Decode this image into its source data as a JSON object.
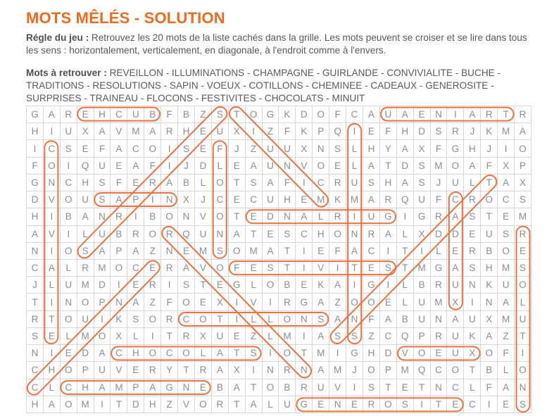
{
  "header": {
    "title": "MOTS MÊLÉS - SOLUTION",
    "rule_label": "Régle du jeu :",
    "rule_text": " Retrouvez les 20 mots de la liste cachés dans la grille. Les mots peuvent se croiser et se lire dans tous les sens : horizontalement, verticalement, en diagonale, à l'endroit comme à l'envers.",
    "words_label": "Mots à retrouver : ",
    "words": [
      "REVEILLON",
      "ILLUMINATIONS",
      "CHAMPAGNE",
      "GUIRLANDE",
      "CONVIVIALITE",
      "BUCHE",
      "TRADITIONS",
      "RESOLUTIONS",
      "SAPIN",
      "VOEUX",
      "COTILLONS",
      "CHEMINEE",
      "CADEAUX",
      "GENEROSITE",
      "SURPRISES",
      "TRAINEAU",
      "FLOCONS",
      "FESTIVITES",
      "CHOCOLATS",
      "MINUIT"
    ],
    "words_separator": " - "
  },
  "colors": {
    "accent": "#ED6B1E",
    "body_text": "#58595b",
    "grid_letter": "#8c8d8f",
    "grid_line": "#d6d6d6",
    "oval_stroke": "#ED7140"
  },
  "grid": {
    "rows": 18,
    "cols": 30,
    "letters": [
      "GAREHCUBFBZSTOGKDOFCAUAENIARTR",
      "HIUXAVMARHEUXIZFKPQIEFHDSRJKMA",
      "ICSEFACOISEFJZUUXNSLHYAXFGHJIO",
      "FOIQUEAFIJDLEAUNVOELATDSMOAFXP",
      "GNCHSFERABLOTSAFICRUSHASJULTAX",
      "DVOUSAPINXJCECUHEMKMARQUFCROCS",
      "HIBANRIBONVOTEDNALRIUGIGRASTEM",
      "AVILUBRORQUNATESCHONRALXDDEUSR",
      "NIOSAPAZNEMSOMATIEFACITILERBOE",
      "CALRMOCERAVOFESTIVITESTMGASHMS",
      "JLUMDIERISTEGLOBEKAIGILBRUNKUO",
      "TINOPNAZFOEXIVIRGAZOOELUMXINAL",
      "RTOUIKSORCOTILLONSANFABUNAUXMU",
      "SELMOXLITRXUEZLMIASSZCQPRUKAZT",
      "NIEDACHOCOLATSIOTMIGHDVOEUXOFI",
      "CHOPUVERYTRAXINRNAMJOPMQCOTBLO",
      "CLCHAMPAGNEBATOBRUVISTETNCLFAN",
      "HAOMITDHZVORTALUGENEROSITECIES"
    ]
  },
  "solutions": [
    {
      "word": "BUCHE",
      "from": [
        1,
        4
      ],
      "to": [
        1,
        8
      ]
    },
    {
      "word": "TRAINEAU",
      "from": [
        1,
        22
      ],
      "to": [
        1,
        29
      ]
    },
    {
      "word": "MINUIT",
      "from": [
        1,
        13
      ],
      "to": [
        6,
        18
      ]
    },
    {
      "word": "SURPRISES",
      "from": [
        1,
        12
      ],
      "to": [
        9,
        4
      ]
    },
    {
      "word": "CONVIVIALITE",
      "from": [
        3,
        2
      ],
      "to": [
        14,
        2
      ]
    },
    {
      "word": "ILLUMINATIONS",
      "from": [
        2,
        20
      ],
      "to": [
        14,
        20
      ]
    },
    {
      "word": "FLOCONS",
      "from": [
        3,
        12
      ],
      "to": [
        9,
        12
      ]
    },
    {
      "word": "SAPIN",
      "from": [
        6,
        5
      ],
      "to": [
        6,
        9
      ]
    },
    {
      "word": "GUIRLANDE",
      "from": [
        7,
        14
      ],
      "to": [
        7,
        22
      ]
    },
    {
      "word": "TRADITIONS",
      "from": [
        5,
        28
      ],
      "to": [
        14,
        19
      ]
    },
    {
      "word": "CADEAUX",
      "from": [
        6,
        26
      ],
      "to": [
        12,
        26
      ]
    },
    {
      "word": "RESOLUTIONS",
      "from": [
        8,
        30
      ],
      "to": [
        18,
        30
      ]
    },
    {
      "word": "REVEILLON",
      "from": [
        8,
        9
      ],
      "to": [
        16,
        17
      ]
    },
    {
      "word": "CHEMINEE",
      "from": [
        10,
        8
      ],
      "to": [
        17,
        1
      ]
    },
    {
      "word": "FESTIVITES",
      "from": [
        10,
        13
      ],
      "to": [
        10,
        22
      ]
    },
    {
      "word": "COTILLONS",
      "from": [
        13,
        10
      ],
      "to": [
        13,
        18
      ]
    },
    {
      "word": "CHOCOLATS",
      "from": [
        15,
        6
      ],
      "to": [
        15,
        14
      ]
    },
    {
      "word": "VOEUX",
      "from": [
        15,
        23
      ],
      "to": [
        15,
        27
      ]
    },
    {
      "word": "CHAMPAGNE",
      "from": [
        17,
        3
      ],
      "to": [
        17,
        11
      ]
    },
    {
      "word": "GENEROSITE",
      "from": [
        18,
        17
      ],
      "to": [
        18,
        26
      ]
    }
  ]
}
